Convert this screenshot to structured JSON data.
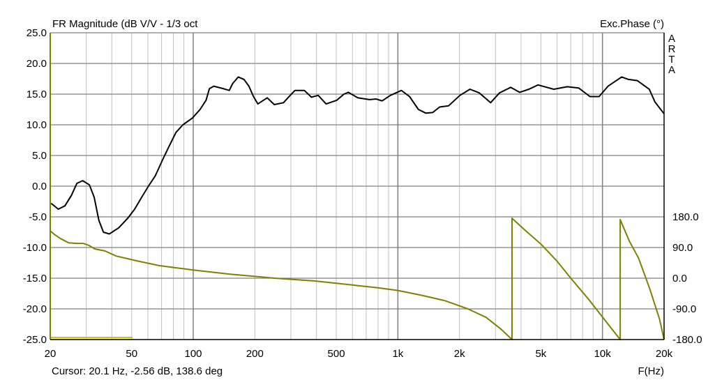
{
  "chart_data": {
    "type": "line",
    "title": "FR Magnitude (dB V/V - 1/3 oct",
    "right_axis_title": "Exc.Phase (°)",
    "xlabel": "F(Hz)",
    "brand": "ARTA",
    "cursor_readout": "Cursor: 20.1 Hz, -2.56 dB, 138.6 deg",
    "x_scale": "log",
    "xlim": [
      20,
      20000
    ],
    "ylim": [
      -25,
      25
    ],
    "y2lim": [
      -180,
      180
    ],
    "grid": true,
    "x_ticks": [
      {
        "v": 20,
        "label": "20"
      },
      {
        "v": 50,
        "label": "50"
      },
      {
        "v": 100,
        "label": "100"
      },
      {
        "v": 200,
        "label": "200"
      },
      {
        "v": 500,
        "label": "500"
      },
      {
        "v": 1000,
        "label": "1k"
      },
      {
        "v": 2000,
        "label": "2k"
      },
      {
        "v": 5000,
        "label": "5k"
      },
      {
        "v": 10000,
        "label": "10k"
      },
      {
        "v": 20000,
        "label": "20k"
      }
    ],
    "y_ticks": [
      {
        "v": 25,
        "label": "25.0"
      },
      {
        "v": 20,
        "label": "20.0"
      },
      {
        "v": 15,
        "label": "15.0"
      },
      {
        "v": 10,
        "label": "10.0"
      },
      {
        "v": 5,
        "label": "5.0"
      },
      {
        "v": 0,
        "label": "0.0"
      },
      {
        "v": -5,
        "label": "-5.0"
      },
      {
        "v": -10,
        "label": "-10.0"
      },
      {
        "v": -15,
        "label": "-15.0"
      },
      {
        "v": -20,
        "label": "-20.0"
      },
      {
        "v": -25,
        "label": "-25.0"
      }
    ],
    "y2_ticks": [
      {
        "v": 180,
        "label": "180.0"
      },
      {
        "v": 90,
        "label": "90.0"
      },
      {
        "v": 0,
        "label": "0.0"
      },
      {
        "v": -90,
        "label": "-90.0"
      },
      {
        "v": -180,
        "label": "-180.0"
      }
    ],
    "series": [
      {
        "name": "FR Magnitude",
        "axis": "left",
        "color": "#000000",
        "points": [
          [
            20.2,
            -2.8
          ],
          [
            21.9,
            -3.75
          ],
          [
            23.6,
            -3.2
          ],
          [
            25.4,
            -1.5
          ],
          [
            27.0,
            0.45
          ],
          [
            28.8,
            0.9
          ],
          [
            31.1,
            0.2
          ],
          [
            32.8,
            -1.8
          ],
          [
            34.6,
            -5.6
          ],
          [
            36.4,
            -7.5
          ],
          [
            38.9,
            -7.8
          ],
          [
            43.2,
            -6.8
          ],
          [
            47.9,
            -5.2
          ],
          [
            51.7,
            -3.75
          ],
          [
            56,
            -1.8
          ],
          [
            60.4,
            0
          ],
          [
            65.3,
            1.7
          ],
          [
            70.6,
            4.2
          ],
          [
            76.2,
            6.5
          ],
          [
            82.3,
            8.75
          ],
          [
            89,
            10
          ],
          [
            99,
            11.1
          ],
          [
            108,
            12.5
          ],
          [
            115.5,
            14
          ],
          [
            119.9,
            15.9
          ],
          [
            126,
            16.3
          ],
          [
            140,
            15.9
          ],
          [
            150,
            15.6
          ],
          [
            155.7,
            16.7
          ],
          [
            166,
            17.8
          ],
          [
            177,
            17.4
          ],
          [
            187,
            16.3
          ],
          [
            197,
            14.6
          ],
          [
            207,
            13.4
          ],
          [
            218,
            13.9
          ],
          [
            230,
            14.4
          ],
          [
            249,
            13.3
          ],
          [
            276,
            13.6
          ],
          [
            290,
            14.4
          ],
          [
            314,
            15.6
          ],
          [
            349,
            15.6
          ],
          [
            378,
            14.5
          ],
          [
            408,
            14.8
          ],
          [
            446,
            13.4
          ],
          [
            503,
            14.0
          ],
          [
            545,
            15.0
          ],
          [
            573,
            15.3
          ],
          [
            637,
            14.4
          ],
          [
            727,
            14.1
          ],
          [
            783,
            14.2
          ],
          [
            838,
            13.9
          ],
          [
            919,
            14.8
          ],
          [
            1040,
            15.6
          ],
          [
            1140,
            14.6
          ],
          [
            1260,
            12.5
          ],
          [
            1370,
            11.9
          ],
          [
            1480,
            12.0
          ],
          [
            1600,
            12.9
          ],
          [
            1770,
            13.1
          ],
          [
            2010,
            14.8
          ],
          [
            2250,
            15.8
          ],
          [
            2500,
            15.2
          ],
          [
            2840,
            13.6
          ],
          [
            3140,
            15.2
          ],
          [
            3560,
            16.1
          ],
          [
            3940,
            15.3
          ],
          [
            4370,
            15.8
          ],
          [
            4840,
            16.5
          ],
          [
            5780,
            15.8
          ],
          [
            6730,
            16.2
          ],
          [
            7650,
            16.0
          ],
          [
            8690,
            14.6
          ],
          [
            9620,
            14.6
          ],
          [
            10650,
            16.3
          ],
          [
            12410,
            17.8
          ],
          [
            13400,
            17.4
          ],
          [
            14790,
            17.2
          ],
          [
            16940,
            15.8
          ],
          [
            18060,
            13.7
          ],
          [
            20000,
            11.8
          ]
        ]
      },
      {
        "name": "Exc.Phase",
        "axis": "right",
        "color": "#808000",
        "segments": [
          [
            [
              20,
              139
            ],
            [
              21,
              128
            ],
            [
              22.5,
              116
            ],
            [
              24.6,
              104
            ],
            [
              27,
              102
            ],
            [
              29,
              102
            ],
            [
              31,
              96
            ],
            [
              33,
              86
            ],
            [
              37,
              80
            ],
            [
              42,
              65
            ],
            [
              53,
              51
            ],
            [
              68,
              37
            ],
            [
              100,
              24
            ],
            [
              150,
              12
            ],
            [
              250,
              0
            ],
            [
              390,
              -8
            ],
            [
              500,
              -15
            ],
            [
              800,
              -28
            ],
            [
              1000,
              -36
            ],
            [
              1300,
              -50
            ],
            [
              1700,
              -66
            ],
            [
              2200,
              -90
            ],
            [
              2700,
              -115
            ],
            [
              3200,
              -150
            ],
            [
              3614,
              -180
            ]
          ],
          [
            [
              3614,
              176
            ],
            [
              4200,
              140
            ],
            [
              5000,
              100
            ],
            [
              6000,
              50
            ],
            [
              7000,
              0
            ],
            [
              8500,
              -60
            ],
            [
              10500,
              -130
            ],
            [
              12210,
              -180
            ]
          ],
          [
            [
              12210,
              172
            ],
            [
              13500,
              110
            ],
            [
              15000,
              59
            ],
            [
              17000,
              -30
            ],
            [
              19000,
              -120
            ],
            [
              20000,
              -180
            ]
          ]
        ]
      }
    ]
  }
}
